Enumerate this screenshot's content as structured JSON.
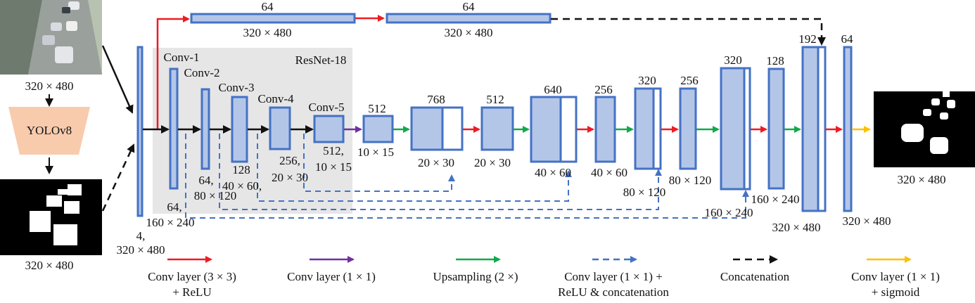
{
  "colors": {
    "block_fill": "#b4c6e7",
    "block_stroke": "#4472c4",
    "conv3x3": "#ee1c24",
    "conv1x1": "#7030a0",
    "upsample": "#12a94b",
    "skip": "#4472c4",
    "concat": "#111111",
    "sigmoid": "#ffc000",
    "resnet_bg": "#e6e6e6",
    "yolo_fill": "#f8cbad"
  },
  "inputs": {
    "photo_size": "320 × 480",
    "mask_size": "320 × 480",
    "yolo_label": "YOLOv8"
  },
  "resnet": {
    "title": "ResNet-18",
    "conv1": "Conv-1",
    "conv2": "Conv-2",
    "conv3": "Conv-3",
    "conv4": "Conv-4",
    "conv5": "Conv-5"
  },
  "encoder": {
    "input_ch": "4,",
    "input_size": "320 × 480",
    "c1_ch": "64,",
    "c1_size": "160 × 240",
    "c2_ch": "64,",
    "c2_size": "80 × 120",
    "c3_ch": "128",
    "c3_size": "40 × 60,",
    "c4_ch": "256,",
    "c4_size": "20 × 30",
    "c5_ch": "512,",
    "c5_size": "10 × 15"
  },
  "top_path": {
    "left_ch": "64",
    "left_size": "320 × 480",
    "right_ch": "64",
    "right_size": "320 × 480"
  },
  "decoder": {
    "d1_ch": "512",
    "d1_size": "10 × 15",
    "d2_ch": "768",
    "d2_size": "20 × 30",
    "d3_ch": "512",
    "d3_size": "20 × 30",
    "d4_ch": "640",
    "d4_size": "40 × 60",
    "d5_ch": "256",
    "d5_size": "40 × 60",
    "d6_ch": "320",
    "d6_size": "80 × 120",
    "d7_ch": "256",
    "d7_size": "80 × 120",
    "d8_ch": "320",
    "d8_size": "160 × 240",
    "d9_ch": "128",
    "d9_size": "160 × 240",
    "d10_ch": "192",
    "d10_size": "320 × 480",
    "d11_ch": "64",
    "d11_size": "320 × 480"
  },
  "output": {
    "size": "320 × 480"
  },
  "legend": {
    "conv3x3_l1": "Conv layer (3 × 3)",
    "conv3x3_l2": "+ ReLU",
    "conv1x1": "Conv layer (1 × 1)",
    "upsampling": "Upsampling (2 ×)",
    "skip_l1": "Conv layer (1 × 1) +",
    "skip_l2": "ReLU & concatenation",
    "concat": "Concatenation",
    "sigmoid_l1": "Conv layer (1 × 1)",
    "sigmoid_l2": "+ sigmoid"
  }
}
